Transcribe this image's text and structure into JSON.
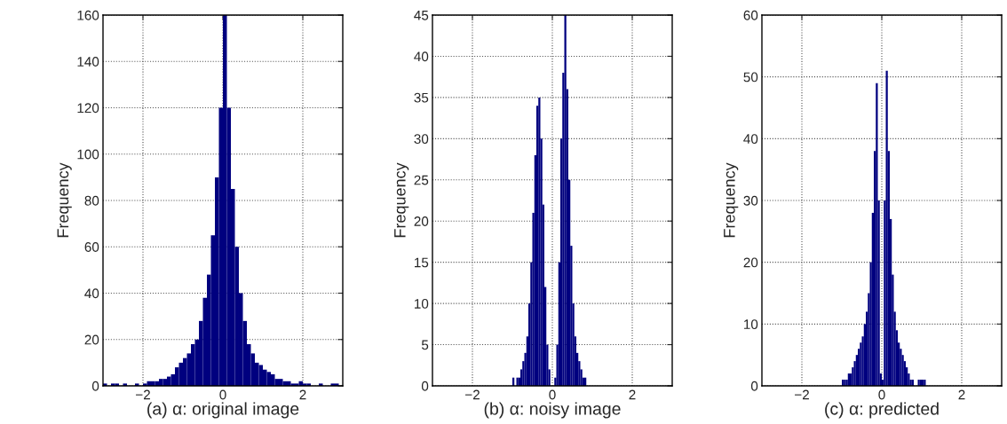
{
  "chart_data": [
    {
      "type": "histogram",
      "xlabel": "(a) α: original image",
      "ylabel": "Frequency",
      "color": "#00007f",
      "bins": [
        -3.0,
        -2.9,
        -2.8,
        -2.7,
        -2.6,
        -2.5,
        -2.4,
        -2.3,
        -2.2,
        -2.1,
        -2.0,
        -1.9,
        -1.8,
        -1.7,
        -1.6,
        -1.5,
        -1.4,
        -1.3,
        -1.2,
        -1.1,
        -1.0,
        -0.9,
        -0.8,
        -0.7,
        -0.6,
        -0.5,
        -0.4,
        -0.3,
        -0.2,
        -0.1,
        0.0,
        0.1,
        0.2,
        0.3,
        0.4,
        0.5,
        0.6,
        0.7,
        0.8,
        0.9,
        1.0,
        1.1,
        1.2,
        1.3,
        1.4,
        1.5,
        1.6,
        1.7,
        1.8,
        1.9,
        2.0,
        2.1,
        2.2,
        2.3,
        2.4,
        2.5,
        2.6,
        2.7,
        2.8,
        2.9,
        3.0
      ],
      "values": [
        1,
        0,
        1,
        1,
        0,
        1,
        0,
        0,
        1,
        0,
        1,
        2,
        2,
        2,
        3,
        3,
        4,
        5,
        8,
        10,
        12,
        14,
        18,
        20,
        28,
        38,
        48,
        65,
        90,
        120,
        160,
        120,
        85,
        60,
        40,
        28,
        18,
        14,
        10,
        9,
        7,
        6,
        5,
        3,
        3,
        2,
        2,
        1,
        1,
        2,
        1,
        1,
        0,
        0,
        1,
        0,
        0,
        1,
        1,
        0
      ],
      "xlim": [
        -3,
        3
      ],
      "xticks": [
        -2,
        0,
        2
      ],
      "ylim": [
        0,
        160
      ],
      "yticks": [
        0,
        20,
        40,
        60,
        80,
        100,
        120,
        140,
        160
      ],
      "grid": true
    },
    {
      "type": "histogram",
      "xlabel": "(b) α: noisy image",
      "ylabel": "Frequency",
      "color": "#00007f",
      "bins": [
        -1.0,
        -0.95,
        -0.9,
        -0.85,
        -0.8,
        -0.75,
        -0.7,
        -0.65,
        -0.6,
        -0.55,
        -0.5,
        -0.45,
        -0.4,
        -0.35,
        -0.3,
        -0.25,
        -0.2,
        -0.15,
        -0.1,
        -0.05,
        0.0,
        0.05,
        0.1,
        0.15,
        0.2,
        0.25,
        0.3,
        0.35,
        0.4,
        0.45,
        0.5,
        0.55,
        0.6,
        0.65,
        0.7,
        0.75,
        0.8,
        0.85,
        0.9,
        0.95,
        1.0
      ],
      "values": [
        1,
        0,
        1,
        1,
        2,
        3,
        4,
        6,
        10,
        15,
        21,
        28,
        34,
        35,
        30,
        22,
        12,
        5,
        2,
        0,
        0,
        1,
        5,
        15,
        30,
        38,
        45,
        36,
        25,
        17,
        10,
        6,
        4,
        3,
        2,
        1,
        1,
        0,
        0,
        0
      ],
      "xlim": [
        -3,
        3
      ],
      "xticks": [
        -2,
        0,
        2
      ],
      "ylim": [
        0,
        45
      ],
      "yticks": [
        0,
        5,
        10,
        15,
        20,
        25,
        30,
        35,
        40,
        45
      ],
      "grid": true
    },
    {
      "type": "histogram",
      "xlabel": "(c) α: predicted",
      "ylabel": "Frequency",
      "color": "#00007f",
      "bins": [
        -1.0,
        -0.95,
        -0.9,
        -0.85,
        -0.8,
        -0.75,
        -0.7,
        -0.65,
        -0.6,
        -0.55,
        -0.5,
        -0.45,
        -0.4,
        -0.35,
        -0.3,
        -0.25,
        -0.2,
        -0.15,
        -0.1,
        -0.05,
        0.0,
        0.05,
        0.1,
        0.15,
        0.2,
        0.25,
        0.3,
        0.35,
        0.4,
        0.45,
        0.5,
        0.55,
        0.6,
        0.65,
        0.7,
        0.75,
        0.8,
        0.85,
        0.9,
        0.95,
        1.0,
        1.05,
        1.1,
        1.15,
        1.2
      ],
      "values": [
        1,
        1,
        1,
        2,
        2,
        3,
        4,
        5,
        6,
        7,
        8,
        10,
        12,
        15,
        20,
        28,
        38,
        49,
        30,
        2,
        1,
        30,
        51,
        38,
        27,
        18,
        12,
        9,
        7,
        6,
        5,
        4,
        3,
        2,
        1,
        1,
        0,
        0,
        1,
        1,
        1,
        1,
        0,
        0
      ],
      "xlim": [
        -3,
        3
      ],
      "xticks": [
        -2,
        0,
        2
      ],
      "ylim": [
        0,
        60
      ],
      "yticks": [
        0,
        10,
        20,
        30,
        40,
        50,
        60
      ],
      "grid": true
    }
  ]
}
